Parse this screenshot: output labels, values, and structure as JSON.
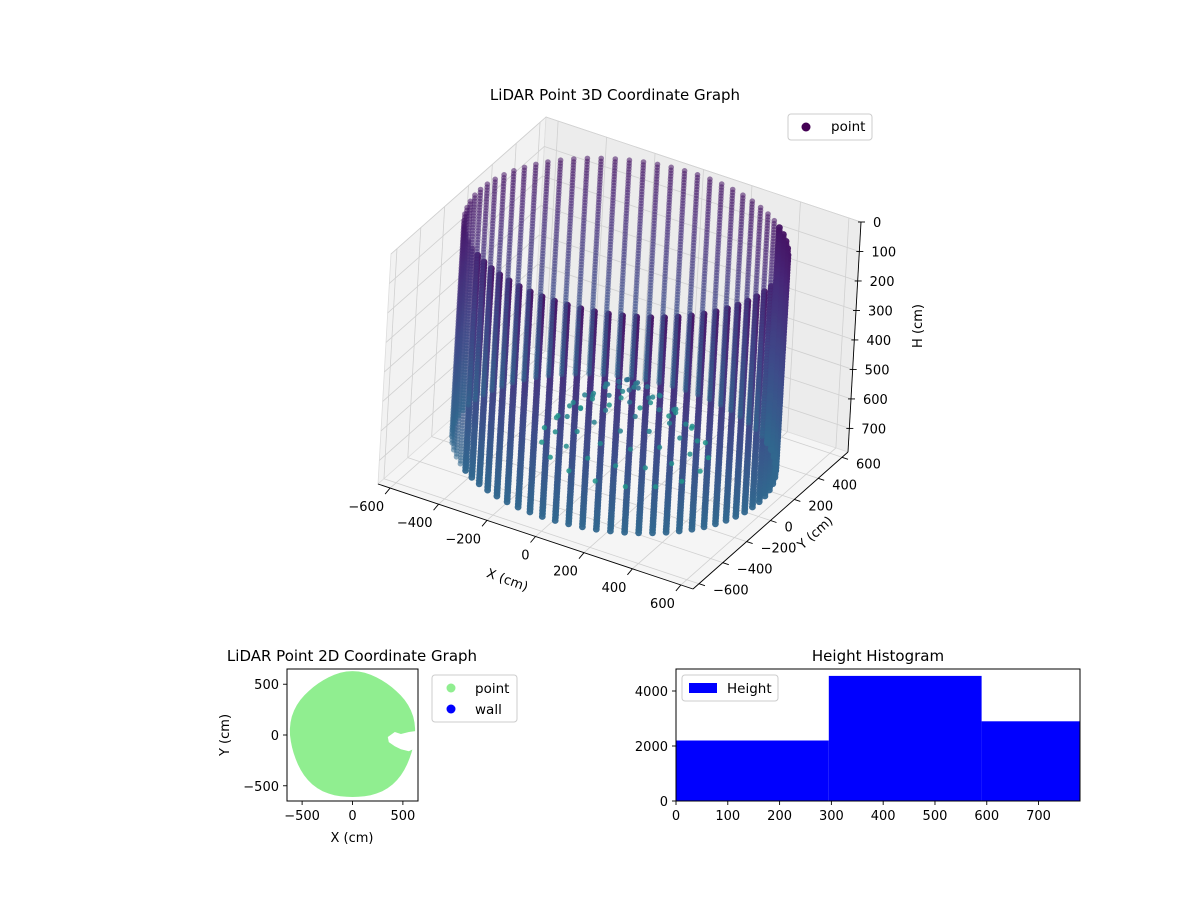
{
  "figure": {
    "plot3d_title": "LiDAR Point 3D Coordinate Graph",
    "plot2d_title": "LiDAR Point 2D Coordinate Graph",
    "hist_title": "Height Histogram"
  },
  "chart_data": [
    {
      "type": "scatter",
      "title": "LiDAR Point 3D Coordinate Graph",
      "xlabel": "X (cm)",
      "ylabel": "Y (cm)",
      "zlabel": "H (cm)",
      "xlim": [
        -650,
        650
      ],
      "ylim": [
        -650,
        650
      ],
      "zlim": [
        780,
        0
      ],
      "x_ticks": [
        "−600",
        "−400",
        "−200",
        "0",
        "200",
        "400",
        "600"
      ],
      "y_ticks": [
        "−600",
        "−400",
        "−200",
        "0",
        "200",
        "400",
        "600"
      ],
      "z_ticks": [
        "0",
        "100",
        "200",
        "300",
        "400",
        "500",
        "600",
        "700"
      ],
      "z_inverted": true,
      "colormap": "viridis",
      "cylinder": {
        "radius_cm": 600,
        "height_range_cm": [
          0,
          730
        ],
        "column_count": 72,
        "height_step_cm": 10
      },
      "interior_mound": {
        "center": [
          30,
          30
        ],
        "radius_cm": 330,
        "peak_height_cm": 490
      },
      "legend": [
        {
          "label": "point",
          "color": "#440154"
        }
      ],
      "legend_position": "top-right",
      "grid": true,
      "pane_color": "#f2f2f2"
    },
    {
      "type": "scatter",
      "title": "LiDAR Point 2D Coordinate Graph",
      "xlabel": "X (cm)",
      "ylabel": "Y (cm)",
      "xlim": [
        -650,
        650
      ],
      "ylim": [
        -650,
        650
      ],
      "x_ticks": [
        "−500",
        "0",
        "500"
      ],
      "y_ticks": [
        "500",
        "0",
        "−500"
      ],
      "series": [
        {
          "name": "point",
          "color": "#90ee90",
          "shape": "disk",
          "radius_cm": 620
        },
        {
          "name": "wall",
          "color": "#0000ff",
          "count": 0
        }
      ],
      "legend_position": "outside-right"
    },
    {
      "type": "bar",
      "title": "Height Histogram",
      "xlabel": "",
      "ylabel": "",
      "bins": [
        {
          "from": 0,
          "to": 295,
          "count": 2200
        },
        {
          "from": 295,
          "to": 590,
          "count": 4550
        },
        {
          "from": 590,
          "to": 780,
          "count": 2900
        }
      ],
      "xlim": [
        0,
        780
      ],
      "ylim": [
        0,
        4800
      ],
      "x_ticks": [
        "0",
        "100",
        "200",
        "300",
        "400",
        "500",
        "600",
        "700"
      ],
      "y_ticks": [
        "0",
        "2000",
        "4000"
      ],
      "legend": [
        {
          "label": "Height",
          "color": "#0000ff"
        }
      ],
      "legend_position": "upper-left",
      "bar_color": "#0000ff"
    }
  ]
}
